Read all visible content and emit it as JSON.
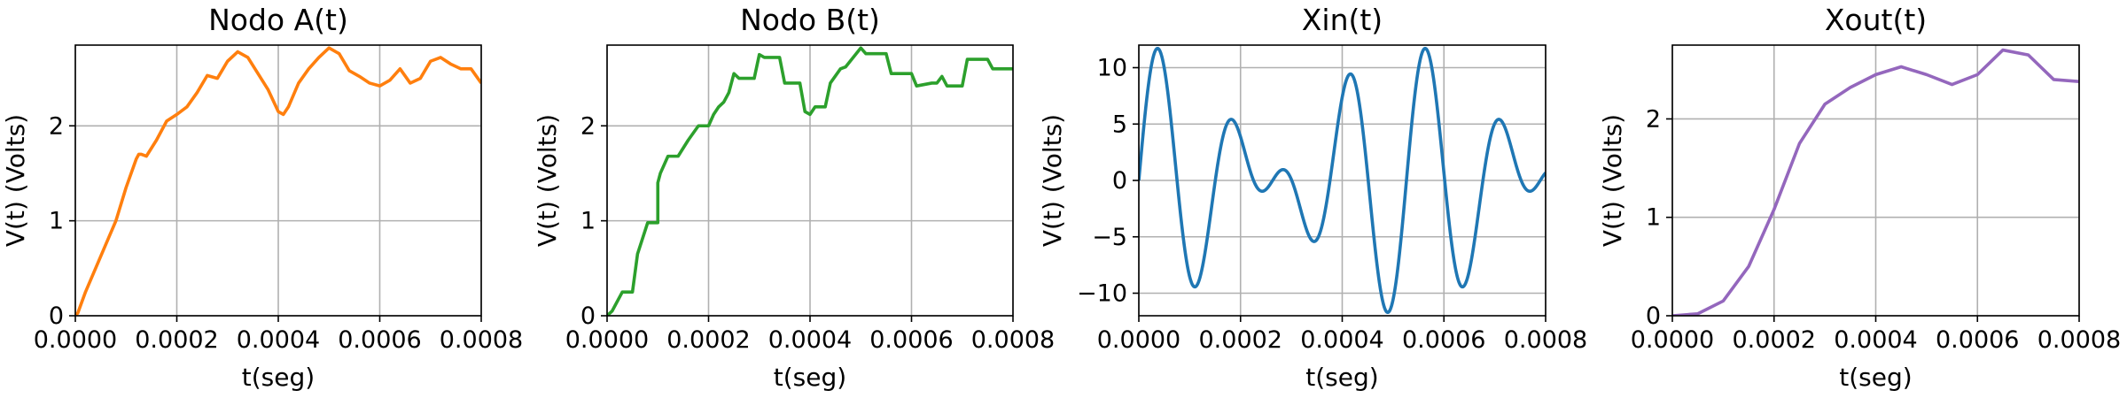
{
  "chart_data": [
    {
      "type": "line",
      "title": "Nodo A(t)",
      "xlabel": "t(seg)",
      "ylabel": "V(t) (Volts)",
      "xlim": [
        0,
        0.0008
      ],
      "ylim": [
        0,
        2.85
      ],
      "xticks": [
        "0.0000",
        "0.0002",
        "0.0004",
        "0.0006",
        "0.0008"
      ],
      "yticks": [
        "0",
        "1",
        "2"
      ],
      "grid": true,
      "color": "#ff7f0e",
      "series": [
        {
          "x": [
            0,
            5e-06,
            2e-05,
            4e-05,
            6e-05,
            8e-05,
            0.0001,
            0.00012,
            0.000125,
            0.00013,
            0.00014,
            0.00016,
            0.00018,
            0.0002,
            0.00022,
            0.00024,
            0.00026,
            0.00028,
            0.0003,
            0.00032,
            0.00034,
            0.00036,
            0.00038,
            0.0004,
            0.00041,
            0.00042,
            0.00044,
            0.00046,
            0.00048,
            0.0005,
            0.00052,
            0.00054,
            0.00056,
            0.00058,
            0.0006,
            0.00062,
            0.00064,
            0.00066,
            0.00068,
            0.0007,
            0.00072,
            0.00074,
            0.00076,
            0.00078,
            0.0008
          ],
          "y": [
            0,
            0.03,
            0.25,
            0.5,
            0.75,
            1.0,
            1.35,
            1.65,
            1.7,
            1.7,
            1.68,
            1.85,
            2.05,
            2.12,
            2.2,
            2.35,
            2.53,
            2.5,
            2.68,
            2.78,
            2.72,
            2.55,
            2.38,
            2.15,
            2.12,
            2.2,
            2.45,
            2.6,
            2.72,
            2.82,
            2.76,
            2.58,
            2.52,
            2.45,
            2.42,
            2.48,
            2.6,
            2.45,
            2.5,
            2.68,
            2.72,
            2.65,
            2.6,
            2.6,
            2.45
          ]
        }
      ]
    },
    {
      "type": "line",
      "title": "Nodo B(t)",
      "xlabel": "t(seg)",
      "ylabel": "V(t) (Volts)",
      "xlim": [
        0,
        0.0008
      ],
      "ylim": [
        0,
        2.85
      ],
      "xticks": [
        "0.0000",
        "0.0002",
        "0.0004",
        "0.0006",
        "0.0008"
      ],
      "yticks": [
        "0",
        "1",
        "2"
      ],
      "grid": true,
      "color": "#2ca02c",
      "series": [
        {
          "x": [
            0,
            1e-05,
            3e-05,
            5e-05,
            6e-05,
            8e-05,
            0.0001,
            0.0001,
            0.000105,
            0.00012,
            0.00014,
            0.00016,
            0.00018,
            0.0002,
            0.00021,
            0.00022,
            0.00023,
            0.00024,
            0.00025,
            0.00026,
            0.00029,
            0.0003,
            0.00031,
            0.00034,
            0.00035,
            0.00038,
            0.00039,
            0.0004,
            0.00041,
            0.00043,
            0.00044,
            0.00046,
            0.00047,
            0.0005,
            0.00051,
            0.00055,
            0.00056,
            0.0006,
            0.00061,
            0.00064,
            0.00065,
            0.00066,
            0.00067,
            0.0007,
            0.00071,
            0.00075,
            0.00076,
            0.0008
          ],
          "y": [
            0,
            0.05,
            0.25,
            0.25,
            0.65,
            0.98,
            0.98,
            1.4,
            1.5,
            1.68,
            1.68,
            1.85,
            2.0,
            2.0,
            2.12,
            2.2,
            2.25,
            2.35,
            2.55,
            2.5,
            2.5,
            2.75,
            2.72,
            2.72,
            2.45,
            2.45,
            2.15,
            2.12,
            2.2,
            2.2,
            2.45,
            2.6,
            2.62,
            2.82,
            2.76,
            2.76,
            2.55,
            2.55,
            2.42,
            2.45,
            2.45,
            2.52,
            2.42,
            2.42,
            2.7,
            2.7,
            2.6,
            2.6
          ]
        }
      ]
    },
    {
      "type": "line",
      "title": "Xin(t)",
      "xlabel": "t(seg)",
      "ylabel": "V(t) (Volts)",
      "xlim": [
        0,
        0.0008
      ],
      "ylim": [
        -12,
        12
      ],
      "xticks": [
        "0.0000",
        "0.0002",
        "0.0004",
        "0.0006",
        "0.0008"
      ],
      "yticks": [
        "−10",
        "−5",
        "0",
        "5",
        "10"
      ],
      "grid": true,
      "color": "#1f77b4",
      "series": [
        {
          "formula": "12*sin(2*pi*f1*t)*cos(2*pi*f2*t)",
          "f1": 6650,
          "f2": 950,
          "xstart": 0,
          "xend": 0.0008,
          "samples": 1600
        }
      ]
    },
    {
      "type": "line",
      "title": "Xout(t)",
      "xlabel": "t(seg)",
      "ylabel": "V(t) (Volts)",
      "xlim": [
        0,
        0.0008
      ],
      "ylim": [
        0,
        2.75
      ],
      "xticks": [
        "0.0000",
        "0.0002",
        "0.0004",
        "0.0006",
        "0.0008"
      ],
      "yticks": [
        "0",
        "1",
        "2"
      ],
      "grid": true,
      "color": "#9467bd",
      "series": [
        {
          "x": [
            0,
            5e-05,
            0.0001,
            0.00015,
            0.0002,
            0.00025,
            0.0003,
            0.00035,
            0.0004,
            0.00045,
            0.0005,
            0.00055,
            0.0006,
            0.00065,
            0.0007,
            0.00075,
            0.0008
          ],
          "y": [
            0,
            0.02,
            0.15,
            0.5,
            1.08,
            1.75,
            2.15,
            2.32,
            2.45,
            2.53,
            2.45,
            2.35,
            2.45,
            2.7,
            2.65,
            2.4,
            2.38
          ]
        }
      ]
    }
  ]
}
